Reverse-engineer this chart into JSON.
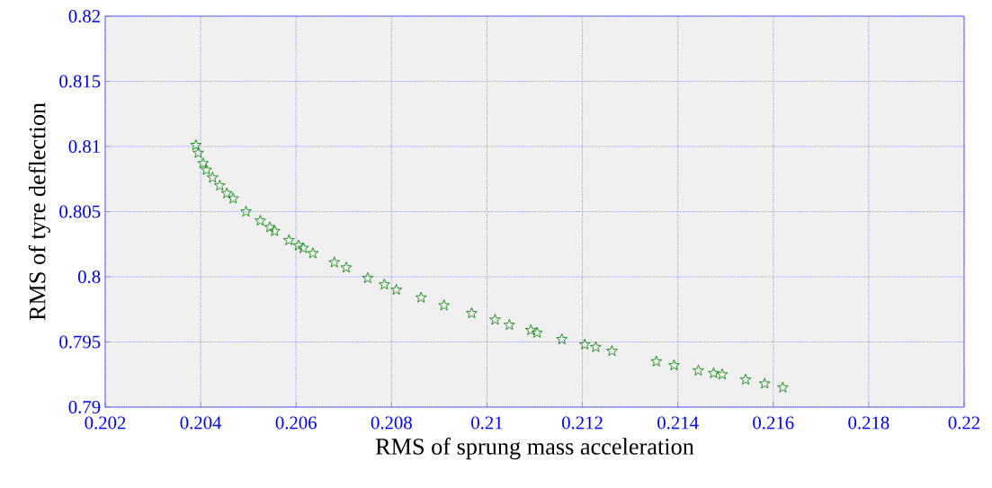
{
  "chart_data": {
    "type": "scatter",
    "xlabel": "RMS of sprung mass acceleration",
    "ylabel": "RMS of tyre deflection",
    "x": [
      0.2039,
      0.20395,
      0.20405,
      0.20412,
      0.20425,
      0.2044,
      0.20455,
      0.20468,
      0.20495,
      0.20525,
      0.20545,
      0.20555,
      0.20585,
      0.20605,
      0.20615,
      0.20635,
      0.2068,
      0.20705,
      0.2075,
      0.20785,
      0.2081,
      0.20862,
      0.2091,
      0.20968,
      0.21017,
      0.21047,
      0.21092,
      0.21105,
      0.21157,
      0.21205,
      0.21228,
      0.21262,
      0.21355,
      0.21392,
      0.21443,
      0.21475,
      0.21493,
      0.21542,
      0.21582,
      0.2162
    ],
    "values": [
      0.8101,
      0.8095,
      0.8087,
      0.8082,
      0.8076,
      0.807,
      0.8064,
      0.806,
      0.805,
      0.8043,
      0.8038,
      0.8035,
      0.8028,
      0.8024,
      0.8022,
      0.8018,
      0.8011,
      0.8007,
      0.7999,
      0.7994,
      0.799,
      0.7984,
      0.7978,
      0.7972,
      0.7967,
      0.7963,
      0.7959,
      0.7957,
      0.7952,
      0.7948,
      0.7946,
      0.7943,
      0.7935,
      0.7932,
      0.7928,
      0.7926,
      0.7925,
      0.7921,
      0.7918,
      0.7915
    ],
    "color": "#008000",
    "marker": "star",
    "grid": true,
    "xlim": [
      0.202,
      0.22
    ],
    "xticks": [
      0.202,
      0.204,
      0.206,
      0.208,
      0.21,
      0.212,
      0.214,
      0.216,
      0.218,
      0.22
    ],
    "ylim": [
      0.79,
      0.82
    ],
    "yticks": [
      0.79,
      0.795,
      0.8,
      0.805,
      0.81,
      0.815,
      0.82
    ]
  }
}
